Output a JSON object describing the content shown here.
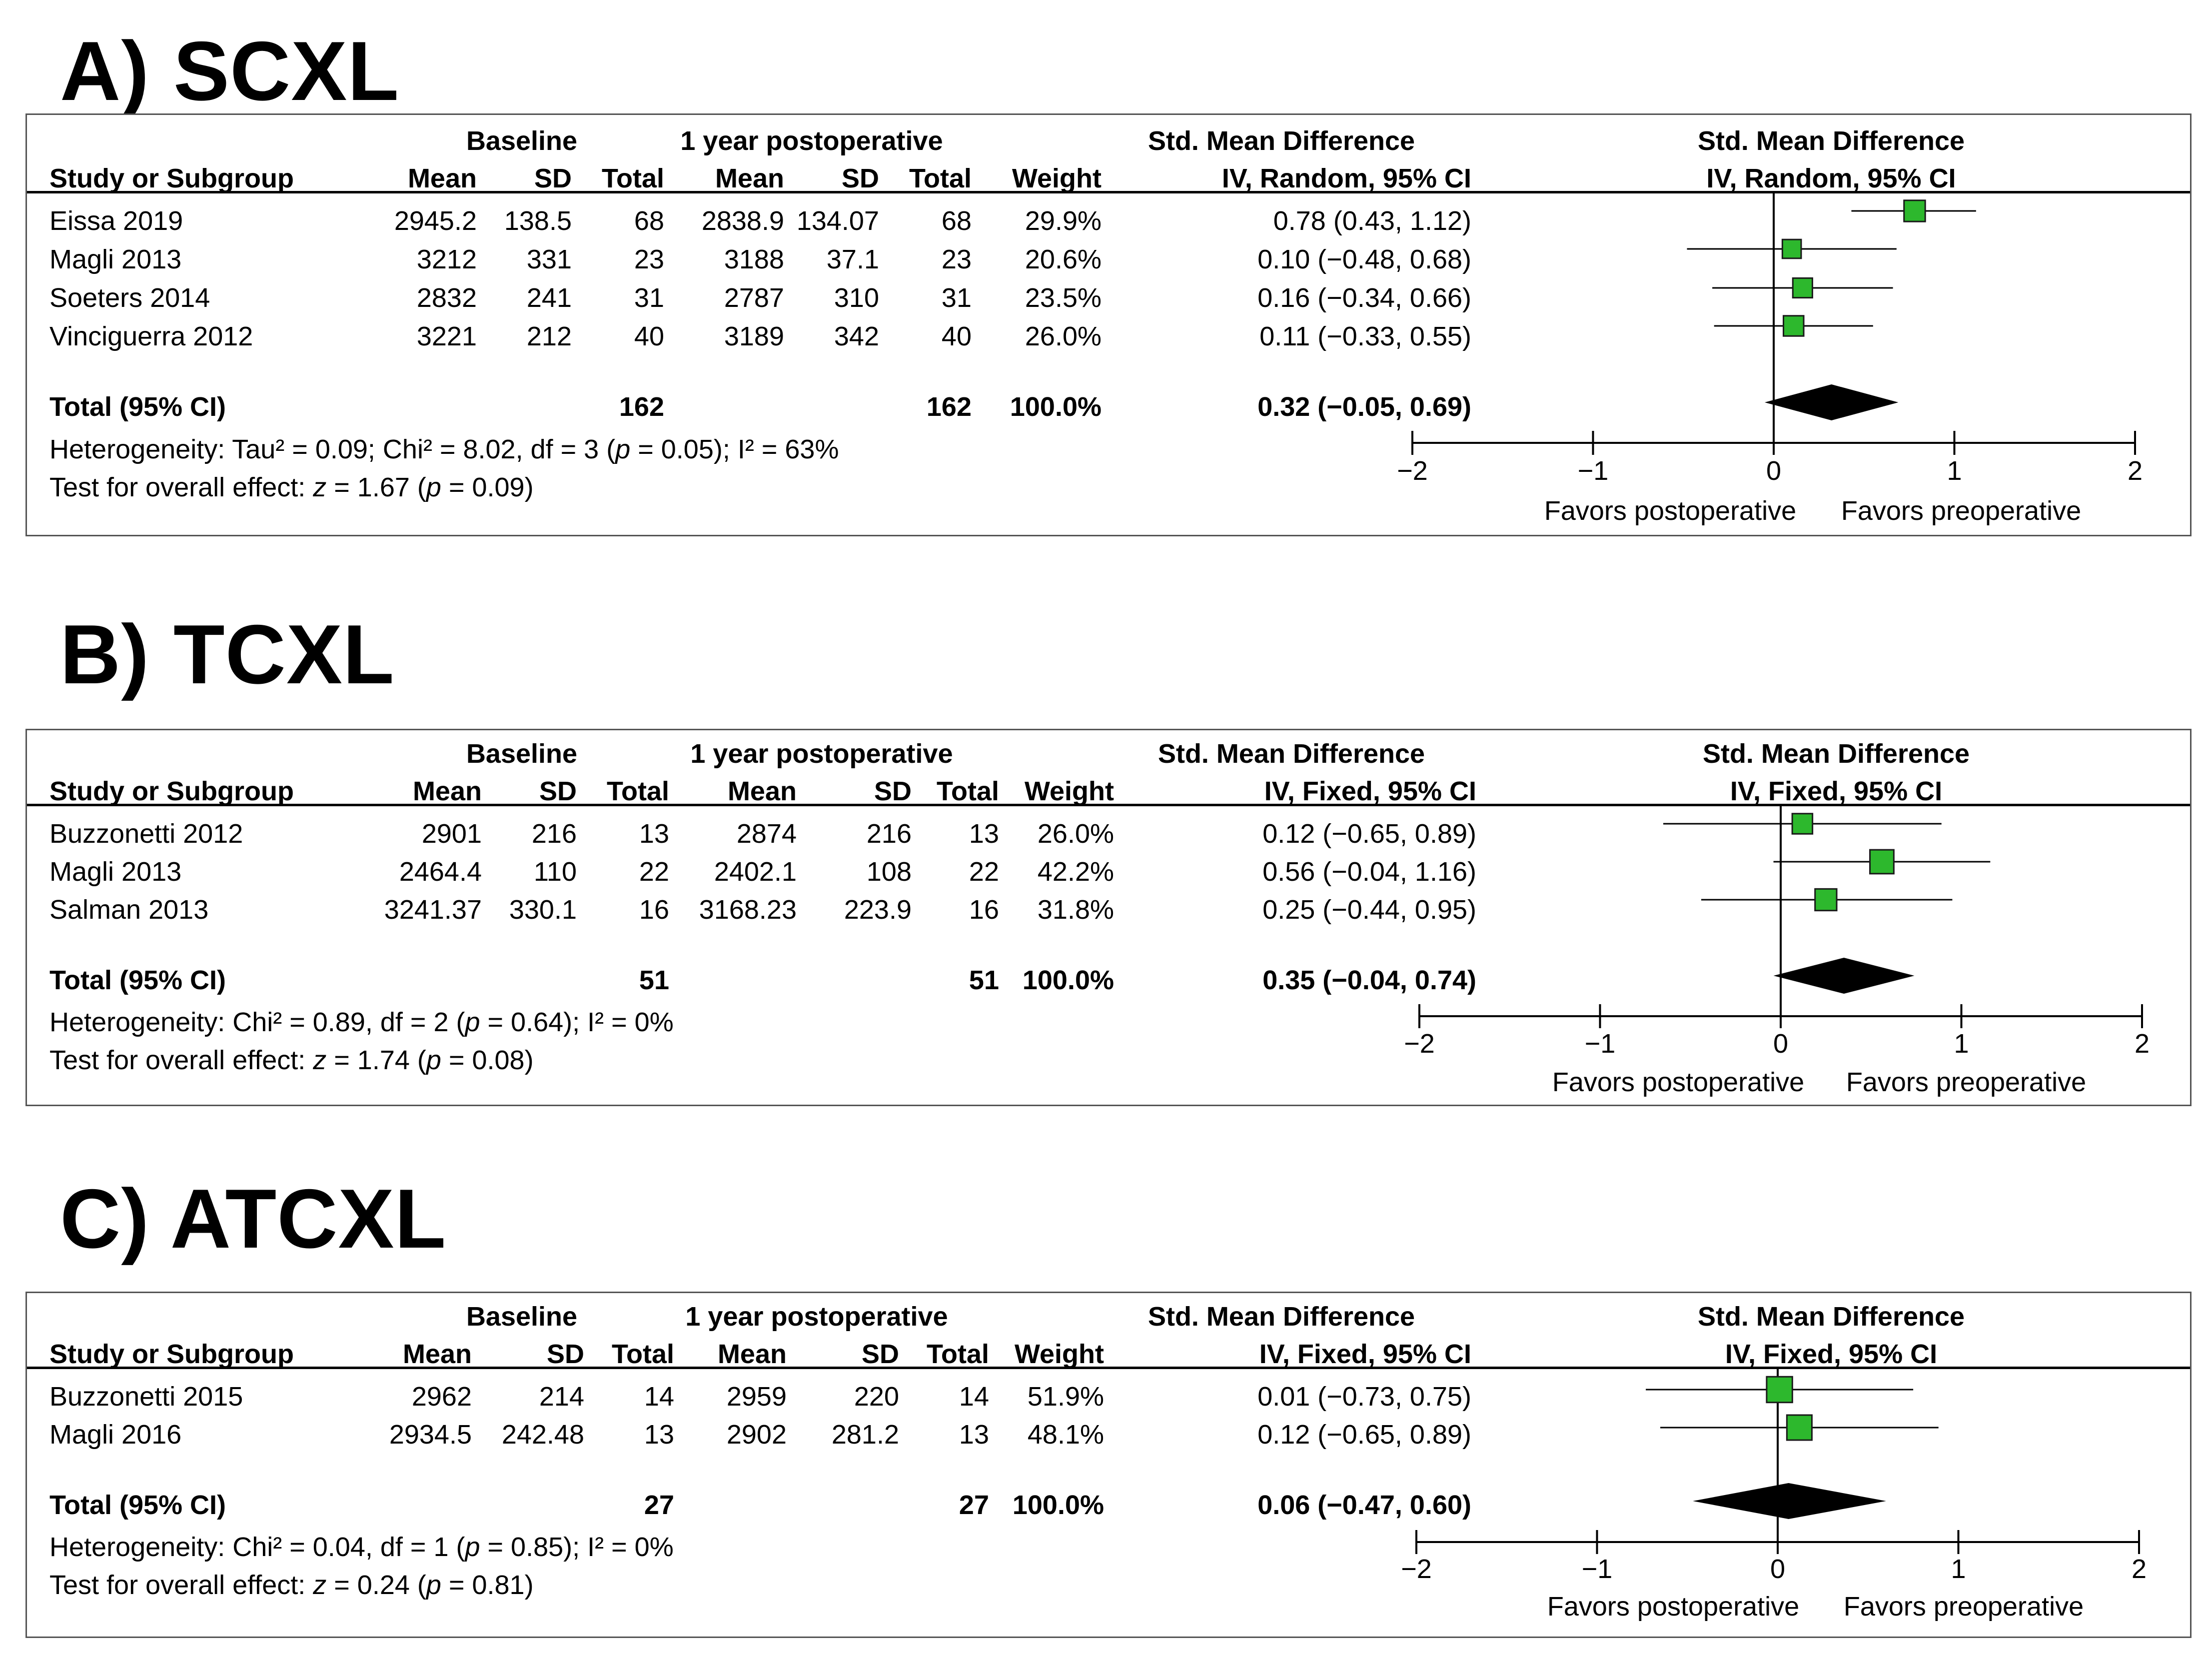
{
  "chart_data": [
    {
      "type": "forest",
      "panel_title": "A) SCXL",
      "header": {
        "group1": "Baseline",
        "group2": "1 year postoperative",
        "effect_title": "Std. Mean Difference",
        "effect_method": "IV, Random, 95% CI",
        "plot_title": "Std. Mean Difference",
        "plot_method": "IV, Random, 95% CI",
        "study_col": "Study or Subgroup",
        "mean": "Mean",
        "sd": "SD",
        "total": "Total",
        "weight": "Weight"
      },
      "studies": [
        {
          "name": "Eissa 2019",
          "mean1": "2945.2",
          "sd1": "138.5",
          "n1": "68",
          "mean2": "2838.9",
          "sd2": "134.07",
          "n2": "68",
          "weight": "29.9%",
          "ci_text": "0.78 (0.43, 1.12)",
          "est": 0.78,
          "lo": 0.43,
          "hi": 1.12,
          "w": 29.9
        },
        {
          "name": "Magli 2013",
          "mean1": "3212",
          "sd1": "331",
          "n1": "23",
          "mean2": "3188",
          "sd2": "37.1",
          "n2": "23",
          "weight": "20.6%",
          "ci_text": "0.10 (−0.48, 0.68)",
          "est": 0.1,
          "lo": -0.48,
          "hi": 0.68,
          "w": 20.6
        },
        {
          "name": "Soeters 2014",
          "mean1": "2832",
          "sd1": "241",
          "n1": "31",
          "mean2": "2787",
          "sd2": "310",
          "n2": "31",
          "weight": "23.5%",
          "ci_text": "0.16 (−0.34, 0.66)",
          "est": 0.16,
          "lo": -0.34,
          "hi": 0.66,
          "w": 23.5
        },
        {
          "name": "Vinciguerra 2012",
          "mean1": "3221",
          "sd1": "212",
          "n1": "40",
          "mean2": "3189",
          "sd2": "342",
          "n2": "40",
          "weight": "26.0%",
          "ci_text": "0.11 (−0.33, 0.55)",
          "est": 0.11,
          "lo": -0.33,
          "hi": 0.55,
          "w": 26.0
        }
      ],
      "total": {
        "label": "Total (95% CI)",
        "n1": "162",
        "n2": "162",
        "weight": "100.0%",
        "ci_text": "0.32 (−0.05, 0.69)",
        "est": 0.32,
        "lo": -0.05,
        "hi": 0.69
      },
      "heterogeneity": {
        "prefix": "Heterogeneity: Tau² = 0.09; Chi² = 8.02, df = 3 (",
        "p_label": "p",
        "p_value": " = 0.05); I² = 63%"
      },
      "overall": {
        "prefix": "Test for overall effect: ",
        "z_label": "z",
        "z_value": " = 1.67 (",
        "p_label": "p",
        "p_value": " = 0.09)"
      },
      "axis": {
        "ticks": [
          -2,
          -1,
          0,
          1,
          2
        ],
        "tick_labels": [
          "−2",
          "−1",
          "0",
          "1",
          "2"
        ],
        "xlim": [
          -2,
          2
        ],
        "left_label": "Favors postoperative",
        "right_label": "Favors preoperative"
      }
    },
    {
      "type": "forest",
      "panel_title": "B) TCXL",
      "header": {
        "group1": "Baseline",
        "group2": "1 year postoperative",
        "effect_title": "Std. Mean Difference",
        "effect_method": "IV, Fixed, 95% CI",
        "plot_title": "Std. Mean Difference",
        "plot_method": "IV, Fixed, 95% CI",
        "study_col": "Study or Subgroup",
        "mean": "Mean",
        "sd": "SD",
        "total": "Total",
        "weight": "Weight"
      },
      "studies": [
        {
          "name": "Buzzonetti 2012",
          "mean1": "2901",
          "sd1": "216",
          "n1": "13",
          "mean2": "2874",
          "sd2": "216",
          "n2": "13",
          "weight": "26.0%",
          "ci_text": "0.12 (−0.65, 0.89)",
          "est": 0.12,
          "lo": -0.65,
          "hi": 0.89,
          "w": 26.0
        },
        {
          "name": "Magli 2013",
          "mean1": "2464.4",
          "sd1": "110",
          "n1": "22",
          "mean2": "2402.1",
          "sd2": "108",
          "n2": "22",
          "weight": "42.2%",
          "ci_text": "0.56 (−0.04, 1.16)",
          "est": 0.56,
          "lo": -0.04,
          "hi": 1.16,
          "w": 42.2
        },
        {
          "name": "Salman 2013",
          "mean1": "3241.37",
          "sd1": "330.1",
          "n1": "16",
          "mean2": "3168.23",
          "sd2": "223.9",
          "n2": "16",
          "weight": "31.8%",
          "ci_text": "0.25 (−0.44, 0.95)",
          "est": 0.25,
          "lo": -0.44,
          "hi": 0.95,
          "w": 31.8
        }
      ],
      "total": {
        "label": "Total (95% CI)",
        "n1": "51",
        "n2": "51",
        "weight": "100.0%",
        "ci_text": "0.35 (−0.04, 0.74)",
        "est": 0.35,
        "lo": -0.04,
        "hi": 0.74
      },
      "heterogeneity": {
        "prefix": "Heterogeneity: Chi² = 0.89, df = 2 (",
        "p_label": "p",
        "p_value": " = 0.64); I² = 0%"
      },
      "overall": {
        "prefix": "Test for overall effect: ",
        "z_label": "z",
        "z_value": " = 1.74 (",
        "p_label": "p",
        "p_value": " = 0.08)"
      },
      "axis": {
        "ticks": [
          -2,
          -1,
          0,
          1,
          2
        ],
        "tick_labels": [
          "−2",
          "−1",
          "0",
          "1",
          "2"
        ],
        "xlim": [
          -2,
          2
        ],
        "left_label": "Favors postoperative",
        "right_label": "Favors preoperative"
      }
    },
    {
      "type": "forest",
      "panel_title": "C) ATCXL",
      "header": {
        "group1": "Baseline",
        "group2": "1 year postoperative",
        "effect_title": "Std. Mean Difference",
        "effect_method": "IV, Fixed, 95% CI",
        "plot_title": "Std. Mean Difference",
        "plot_method": "IV, Fixed, 95% CI",
        "study_col": "Study or Subgroup",
        "mean": "Mean",
        "sd": "SD",
        "total": "Total",
        "weight": "Weight"
      },
      "studies": [
        {
          "name": "Buzzonetti 2015",
          "mean1": "2962",
          "sd1": "214",
          "n1": "14",
          "mean2": "2959",
          "sd2": "220",
          "n2": "14",
          "weight": "51.9%",
          "ci_text": "0.01 (−0.73, 0.75)",
          "est": 0.01,
          "lo": -0.73,
          "hi": 0.75,
          "w": 51.9
        },
        {
          "name": "Magli 2016",
          "mean1": "2934.5",
          "sd1": "242.48",
          "n1": "13",
          "mean2": "2902",
          "sd2": "281.2",
          "n2": "13",
          "weight": "48.1%",
          "ci_text": "0.12 (−0.65, 0.89)",
          "est": 0.12,
          "lo": -0.65,
          "hi": 0.89,
          "w": 48.1
        }
      ],
      "total": {
        "label": "Total (95% CI)",
        "n1": "27",
        "n2": "27",
        "weight": "100.0%",
        "ci_text": "0.06 (−0.47, 0.60)",
        "est": 0.06,
        "lo": -0.47,
        "hi": 0.6
      },
      "heterogeneity": {
        "prefix": "Heterogeneity: Chi² = 0.04, df = 1 (",
        "p_label": "p",
        "p_value": " = 0.85); I² = 0%"
      },
      "overall": {
        "prefix": "Test for overall effect: ",
        "z_label": "z",
        "z_value": " = 0.24 (",
        "p_label": "p",
        "p_value": " = 0.81)"
      },
      "axis": {
        "ticks": [
          -2,
          -1,
          0,
          1,
          2
        ],
        "tick_labels": [
          "−2",
          "−1",
          "0",
          "1",
          "2"
        ],
        "xlim": [
          -2,
          2
        ],
        "left_label": "Favors postoperative",
        "right_label": "Favors preoperative"
      }
    }
  ],
  "colors": {
    "marker": "#2db82d",
    "marker_border": "#1a1a1a",
    "line": "#000000"
  }
}
